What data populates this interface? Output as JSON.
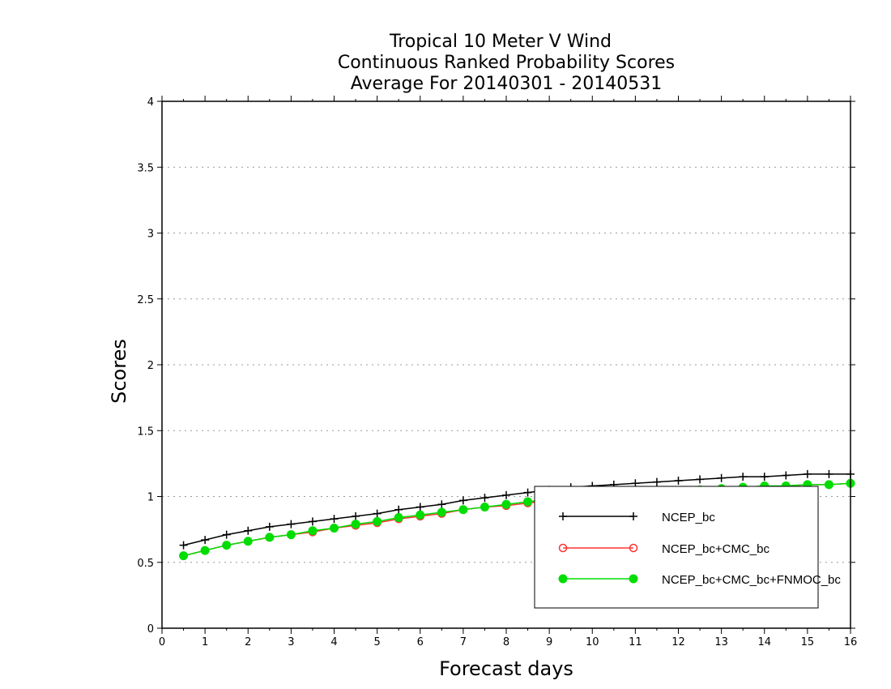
{
  "chart_data": {
    "type": "line",
    "title": [
      "Tropical 10 Meter V Wind",
      "Continuous Ranked Probability Scores",
      "Average For 20140301 - 20140531"
    ],
    "xlabel": "Forecast days",
    "ylabel": "Scores",
    "xlim": [
      0,
      16
    ],
    "ylim": [
      0,
      4
    ],
    "x_ticks": [
      "0",
      "1",
      "2",
      "3",
      "4",
      "5",
      "6",
      "7",
      "8",
      "9",
      "10",
      "11",
      "12",
      "13",
      "14",
      "15",
      "16"
    ],
    "y_ticks": [
      "0",
      "0.5",
      "1",
      "1.5",
      "2",
      "2.5",
      "3",
      "3.5",
      "4"
    ],
    "grid": "horizontal-dotted",
    "legend_placement": "bottom-right",
    "x": [
      0.5,
      1,
      1.5,
      2,
      2.5,
      3,
      3.5,
      4,
      4.5,
      5,
      5.5,
      6,
      6.5,
      7,
      7.5,
      8,
      8.5,
      9,
      9.5,
      10,
      10.5,
      11,
      11.5,
      12,
      12.5,
      13,
      13.5,
      14,
      14.5,
      15,
      15.5,
      16
    ],
    "series": [
      {
        "name": "NCEP_bc",
        "color": "#000000",
        "marker": "plus",
        "values": [
          0.63,
          0.67,
          0.71,
          0.74,
          0.77,
          0.79,
          0.81,
          0.83,
          0.85,
          0.87,
          0.9,
          0.92,
          0.94,
          0.97,
          0.99,
          1.01,
          1.03,
          1.05,
          1.07,
          1.08,
          1.09,
          1.1,
          1.11,
          1.12,
          1.13,
          1.14,
          1.15,
          1.15,
          1.16,
          1.17,
          1.17,
          1.17
        ]
      },
      {
        "name": "NCEP_bc+CMC_bc",
        "color": "#ff3333",
        "marker": "open-circle",
        "values": [
          0.55,
          0.59,
          0.63,
          0.66,
          0.69,
          0.71,
          0.73,
          0.76,
          0.78,
          0.8,
          0.83,
          0.85,
          0.87,
          0.9,
          0.92,
          0.93,
          0.95,
          0.97,
          0.99,
          1.0,
          1.01,
          1.02,
          1.03,
          1.04,
          1.05,
          1.06,
          1.07,
          1.07,
          1.08,
          1.09,
          1.09,
          1.1
        ]
      },
      {
        "name": "NCEP_bc+CMC_bc+FNMOC_bc",
        "color": "#00dd00",
        "marker": "filled-circle",
        "values": [
          0.55,
          0.59,
          0.63,
          0.66,
          0.69,
          0.71,
          0.74,
          0.76,
          0.79,
          0.81,
          0.84,
          0.86,
          0.88,
          0.9,
          0.92,
          0.94,
          0.96,
          0.98,
          0.99,
          1.0,
          1.01,
          1.02,
          1.03,
          1.04,
          1.05,
          1.06,
          1.07,
          1.08,
          1.08,
          1.09,
          1.09,
          1.1
        ]
      }
    ]
  }
}
